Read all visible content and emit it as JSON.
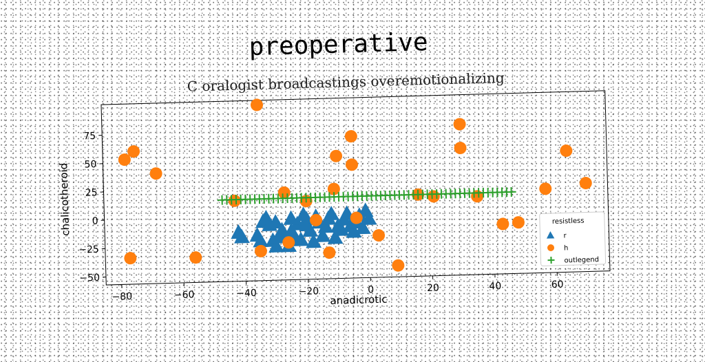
{
  "chart_data": {
    "type": "scatter",
    "title": "preoperative",
    "subtitle": "C oralogist broadcastings overemotionalizing",
    "xlabel": "anadicrotic",
    "ylabel": "chalicotheroid",
    "xlim": [
      -85,
      77
    ],
    "ylim": [
      -57,
      102
    ],
    "xticks": [
      -80,
      -60,
      -40,
      -20,
      0,
      20,
      40,
      60
    ],
    "yticks": [
      -50,
      -25,
      0,
      25,
      50,
      75
    ],
    "grid": false,
    "legend": {
      "title": "resistless",
      "position": "lower-right"
    },
    "series": [
      {
        "name": "r",
        "marker": "triangle",
        "color": "#1f77b4",
        "points": [
          [
            -42,
            -14
          ],
          [
            -41,
            -18
          ],
          [
            -36,
            -17
          ],
          [
            -35,
            -22
          ],
          [
            -34,
            -5
          ],
          [
            -33,
            -2
          ],
          [
            -32,
            -8
          ],
          [
            -31,
            -22
          ],
          [
            -30,
            -27
          ],
          [
            -29,
            -19
          ],
          [
            -28,
            -13
          ],
          [
            -27,
            -19
          ],
          [
            -26,
            -27
          ],
          [
            -25,
            -14
          ],
          [
            -24,
            -21
          ],
          [
            -23,
            -8
          ],
          [
            -22,
            -22
          ],
          [
            -21,
            0
          ],
          [
            -20,
            -4
          ],
          [
            -20,
            -9
          ],
          [
            -19,
            -14
          ],
          [
            -18,
            -24
          ],
          [
            -17,
            -2
          ],
          [
            -16,
            -7
          ],
          [
            -15,
            -19
          ],
          [
            -14,
            -11
          ],
          [
            -13,
            -4
          ],
          [
            -12,
            0
          ],
          [
            -11,
            -21
          ],
          [
            -10,
            -11
          ],
          [
            -9,
            -14
          ],
          [
            -8,
            -5
          ],
          [
            -7,
            0
          ],
          [
            -6,
            -11
          ],
          [
            -5,
            -16
          ],
          [
            -4,
            -8
          ],
          [
            -3,
            -2
          ],
          [
            -2,
            -13
          ],
          [
            -1,
            2
          ],
          [
            0,
            -5
          ],
          [
            -30,
            -6
          ],
          [
            -25,
            -3
          ]
        ]
      },
      {
        "name": "h",
        "marker": "circle",
        "color": "#ff7f0e",
        "points": [
          [
            -78,
            53
          ],
          [
            -75,
            60
          ],
          [
            -68,
            40
          ],
          [
            -77,
            -34
          ],
          [
            -56,
            -35
          ],
          [
            -43,
            14
          ],
          [
            -35,
            98
          ],
          [
            -27,
            20
          ],
          [
            -35,
            -31
          ],
          [
            -26,
            -24
          ],
          [
            -20,
            12
          ],
          [
            -17,
            -5
          ],
          [
            -13,
            -34
          ],
          [
            -11,
            22
          ],
          [
            -10,
            51
          ],
          [
            -5,
            68
          ],
          [
            -5,
            43
          ],
          [
            -4,
            -4
          ],
          [
            3,
            -20
          ],
          [
            9,
            -47
          ],
          [
            16,
            15
          ],
          [
            21,
            13
          ],
          [
            30,
            76
          ],
          [
            30,
            55
          ],
          [
            35,
            12
          ],
          [
            43,
            -13
          ],
          [
            48,
            -12
          ],
          [
            57,
            17
          ],
          [
            64,
            50
          ],
          [
            70,
            21
          ]
        ]
      },
      {
        "name": "outlegend",
        "marker": "plus",
        "color": "#2ca02c",
        "y": 15,
        "x_start": -47,
        "x_end": 46,
        "x_step": 1.5
      }
    ]
  }
}
